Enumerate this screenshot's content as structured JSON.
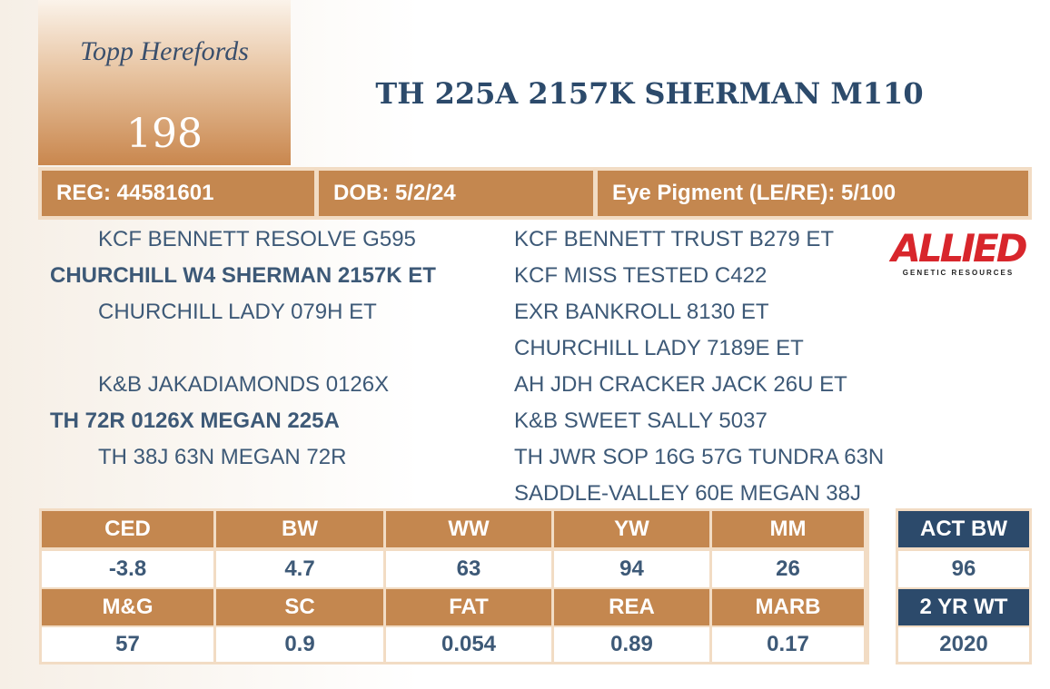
{
  "logo": {
    "script": "Topp Herefords",
    "lot": "198"
  },
  "title": "TH 225A 2157K SHERMAN M110",
  "info": [
    "REG: 44581601",
    "DOB: 5/2/24",
    "Eye Pigment (LE/RE): 5/100"
  ],
  "pedigree": {
    "sire": {
      "sire": "KCF BENNETT RESOLVE G595",
      "name": "CHURCHILL W4 SHERMAN 2157K ET",
      "dam": "CHURCHILL LADY 079H ET"
    },
    "dam": {
      "sire": "K&B JAKADIAMONDS 0126X",
      "name": "TH 72R 0126X MEGAN 225A",
      "dam": "TH 38J 63N MEGAN 72R"
    },
    "grandparents": [
      "KCF BENNETT TRUST B279 ET",
      "KCF MISS TESTED C422",
      "EXR BANKROLL 8130 ET",
      "CHURCHILL LADY 7189E ET",
      "AH JDH CRACKER JACK 26U ET",
      "K&B SWEET SALLY 5037",
      "TH JWR SOP 16G 57G TUNDRA 63N",
      "SADDLE-VALLEY 60E MEGAN 38J"
    ]
  },
  "sponsor": {
    "name": "ALLIED",
    "tagline": "GENETIC RESOURCES"
  },
  "epd": {
    "rows": [
      {
        "headers": [
          "CED",
          "BW",
          "WW",
          "YW",
          "MM"
        ],
        "values": [
          "-3.8",
          "4.7",
          "63",
          "94",
          "26"
        ]
      },
      {
        "headers": [
          "M&G",
          "SC",
          "FAT",
          "REA",
          "MARB"
        ],
        "values": [
          "57",
          "0.9",
          "0.054",
          "0.89",
          "0.17"
        ]
      }
    ]
  },
  "performance": {
    "rows": [
      {
        "header": "ACT BW",
        "value": "96"
      },
      {
        "header": "2 YR WT",
        "value": "2020"
      }
    ]
  }
}
